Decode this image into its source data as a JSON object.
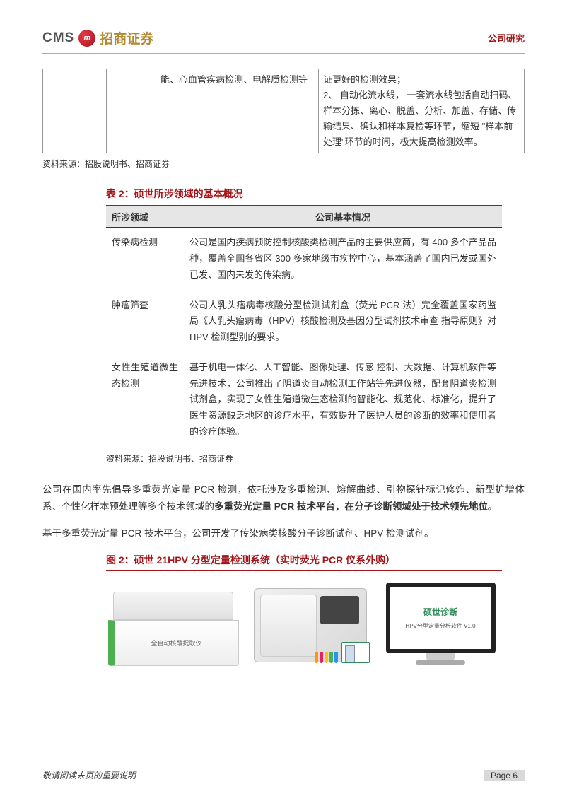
{
  "header": {
    "logo_cms": "CMS",
    "logo_badge": "m",
    "logo_cn": "招商证券",
    "right": "公司研究"
  },
  "frag_table": {
    "c3_text": "能、心血管疾病检测、电解质检测等",
    "c4_text": "证更好的检测效果；\n2、 自动化流水线， 一套流水线包括自动扫码、样本分拣、离心、脱盖、分析、加盖、存储、传输结果、确认和样本复检等环节，缩短 \"样本前处理\"环节的时间，极大提高检测效率。"
  },
  "source_note_1": "资料来源：招股说明书、招商证券",
  "table2": {
    "caption": "表 2：硕世所涉领域的基本概况",
    "head_col1": "所涉领域",
    "head_col2": "公司基本情况",
    "rows": [
      {
        "domain": "传染病检测",
        "desc": "公司是国内疾病预防控制核酸类检测产品的主要供应商，有 400 多个产品品种，覆盖全国各省区 300 多家地级市疾控中心，基本涵盖了国内已发或国外已发、国内未发的传染病。"
      },
      {
        "domain": "肿瘤筛查",
        "desc": "公司人乳头瘤病毒核酸分型检测试剂盒（荧光 PCR 法）完全覆盖国家药监局《人乳头瘤病毒（HPV）核酸检测及基因分型试剂技术审查 指导原则》对 HPV 检测型别的要求。"
      },
      {
        "domain": "女性生殖道微生态检测",
        "desc": "基于机电一体化、人工智能、图像处理、传感 控制、大数据、计算机软件等先进技术，公司推出了阴道炎自动检测工作站等先进仪器，配套阴道炎检测试剂盒，实现了女性生殖道微生态检测的智能化、规范化、标准化，提升了医生资源缺乏地区的诊疗水平，有效提升了医护人员的诊断的效率和使用者的诊疗体验。"
      }
    ]
  },
  "source_note_2": "资料来源：招股说明书、招商证券",
  "para1_pre": "公司在国内率先倡导多重荧光定量 PCR 检测，依托涉及多重检测、熔解曲线、引物探针标记修饰、新型扩增体系、个性化样本预处理等多个技术领域的",
  "para1_bold": "多重荧光定量 PCR 技术平台，在分子诊断领域处于技术领先地位。",
  "para2": "基于多重荧光定量 PCR 技术平台，公司开发了传染病类核酸分子诊断试剂、HPV 检测试剂。",
  "figure": {
    "caption": "图 2：硕世 21HPV 分型定量检测系统（实时荧光 PCR 仪系外购）",
    "dev1_label": "全自动核酸提取仪",
    "monitor_brand": "硕世诊断",
    "monitor_sub": "HPV分型定量分析软件 V1.0",
    "tube_colors": [
      "#ff9800",
      "#e91e63",
      "#ffc107",
      "#4caf50",
      "#2196f3"
    ]
  },
  "footer": {
    "left": "敬请阅读末页的重要说明",
    "right": "Page  6"
  },
  "colors": {
    "accent": "#a4161a",
    "header_rule": "#e6a23c",
    "grid": "#999999",
    "table_head_bg": "#e6e6e6"
  }
}
